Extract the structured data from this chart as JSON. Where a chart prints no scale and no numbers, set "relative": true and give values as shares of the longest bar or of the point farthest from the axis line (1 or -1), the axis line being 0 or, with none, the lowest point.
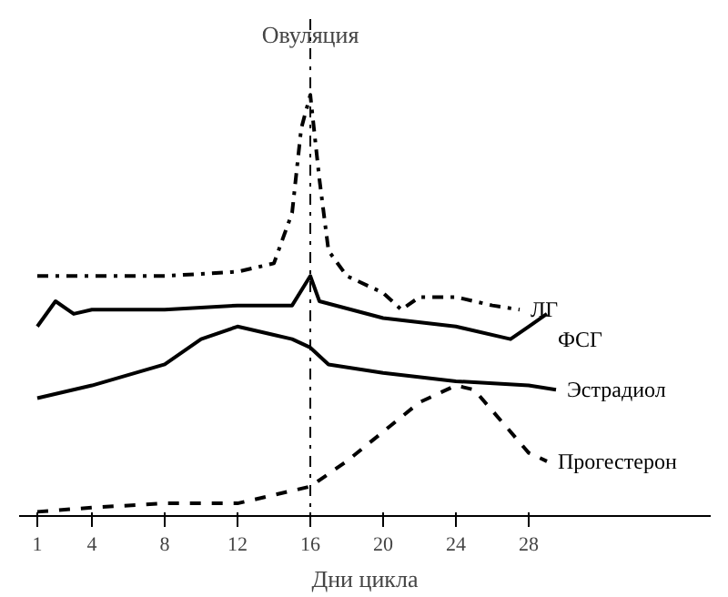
{
  "chart_data": {
    "type": "line",
    "relative": true,
    "xlabel": "Дни цикла",
    "xlim": [
      0,
      38
    ],
    "xticks": [
      1,
      4,
      8,
      12,
      16,
      20,
      24,
      28
    ],
    "grid": false,
    "marker": "none",
    "series": [
      {
        "name": "ЛГ",
        "color": "#000000",
        "line_style": "dashdot",
        "x": [
          1,
          4,
          8,
          12,
          14,
          15,
          15.5,
          16,
          16.5,
          17,
          18,
          20,
          21,
          22,
          24,
          26,
          27.5
        ],
        "values": [
          0.57,
          0.57,
          0.57,
          0.58,
          0.6,
          0.72,
          0.92,
          1.0,
          0.8,
          0.63,
          0.57,
          0.53,
          0.49,
          0.52,
          0.52,
          0.5,
          0.49
        ]
      },
      {
        "name": "ФСГ",
        "color": "#000000",
        "line_style": "solid",
        "x": [
          1,
          2,
          3,
          4,
          8,
          12,
          15,
          16,
          16.5,
          20,
          24,
          27,
          28,
          29
        ],
        "values": [
          0.45,
          0.51,
          0.48,
          0.49,
          0.49,
          0.5,
          0.5,
          0.57,
          0.51,
          0.47,
          0.45,
          0.42,
          0.45,
          0.48
        ]
      },
      {
        "name": "Эстрадиол",
        "color": "#000000",
        "line_style": "solid",
        "x": [
          1,
          4,
          8,
          10,
          12,
          14,
          15,
          16,
          17,
          20,
          24,
          28,
          29.5
        ],
        "values": [
          0.28,
          0.31,
          0.36,
          0.42,
          0.45,
          0.43,
          0.42,
          0.4,
          0.36,
          0.34,
          0.32,
          0.31,
          0.3
        ]
      },
      {
        "name": "Прогестерон",
        "color": "#000000",
        "line_style": "dashed",
        "x": [
          1,
          4,
          8,
          12,
          15,
          16,
          18,
          20,
          22,
          24,
          25,
          26,
          28,
          29
        ],
        "values": [
          0.01,
          0.02,
          0.03,
          0.03,
          0.06,
          0.07,
          0.13,
          0.2,
          0.27,
          0.31,
          0.3,
          0.25,
          0.15,
          0.13
        ]
      }
    ],
    "ref_lines": [
      {
        "axis": "x",
        "value": 16,
        "label": "Овуляция",
        "line_style": "dashdot",
        "color": "#000000"
      }
    ]
  }
}
